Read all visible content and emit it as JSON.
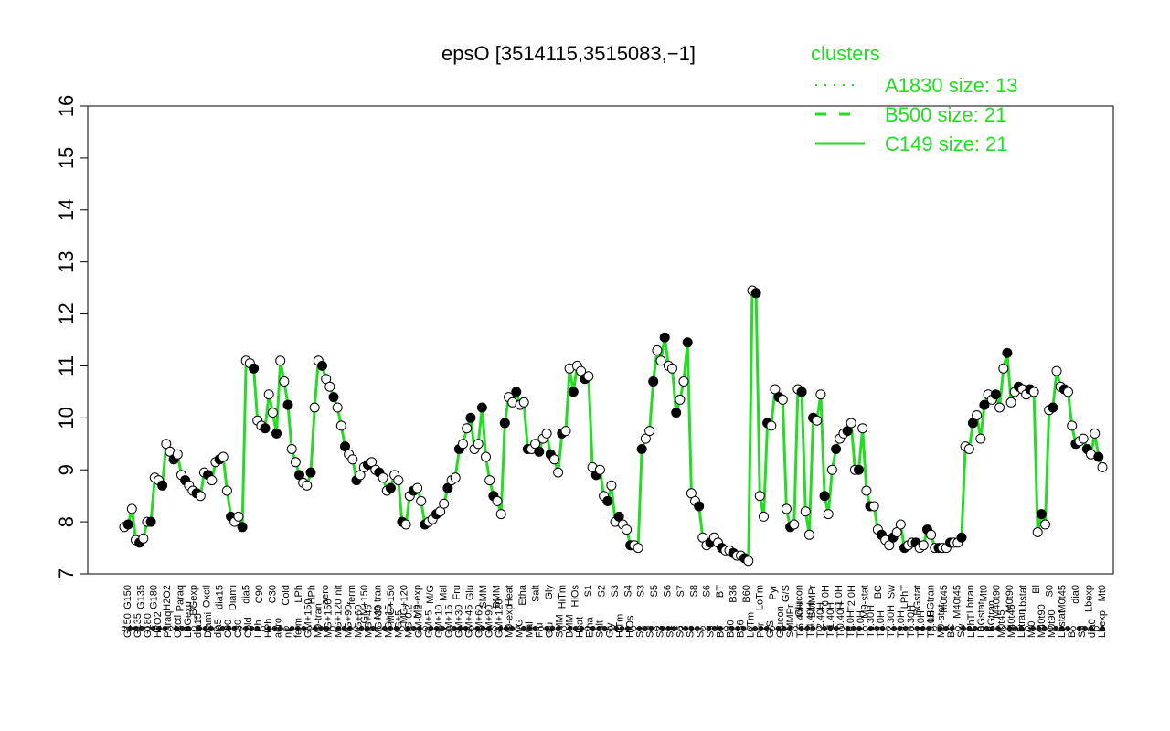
{
  "chart_data": {
    "type": "line",
    "title": "epsO [3514115,3515083,−1]",
    "ylim": [
      7,
      16
    ],
    "yticks": [
      7,
      8,
      9,
      10,
      11,
      12,
      13,
      14,
      15,
      16
    ],
    "line_color": "#22dd22",
    "legend": {
      "title": "clusters",
      "placement": "top-right",
      "entries": [
        {
          "label": "A1830 size: 13",
          "style": "dotted"
        },
        {
          "label": "B500 size: 21",
          "style": "dashed"
        },
        {
          "label": "C149 size: 21",
          "style": "solid"
        }
      ]
    },
    "x_labels": [
      "G150",
      "G135",
      "G180",
      "H2O2",
      "Paraq",
      "Oxctl",
      "LBGexp",
      "dia15",
      "Diami",
      "dia5",
      "C90",
      "C30",
      "Cold",
      "LPh",
      "HPh",
      "aero",
      "nit",
      "ferm",
      "GM+150",
      "M9-tran",
      "MG+150",
      "MG+120",
      "MG+90",
      "MG+60",
      "MG+45",
      "MG+30",
      "MG+15",
      "MG+5",
      "MG-0.2",
      "GM-0.2",
      "GM+5",
      "GM+10",
      "GM+15",
      "GM+30",
      "GM+45",
      "GM+60",
      "GM+90",
      "GM+120",
      "M9-exp",
      "M/G",
      "Mal",
      "Fru",
      "Glu",
      "SMM",
      "BMM",
      "Heat",
      "Etha",
      "Salt",
      "Gly",
      "HiTm",
      "HiOs",
      "S1",
      "S2",
      "S3",
      "S4",
      "S5",
      "S6",
      "S7",
      "S8",
      "BT",
      "B60",
      "B36",
      "LoTm",
      "Pyr",
      "G/S",
      "Glucon",
      "SMMPr",
      "T-5.40H",
      "T-4.40H",
      "T-2.40H",
      "T-1.40H",
      "T-0.40H",
      "T0.0H",
      "T1.0H",
      "T1.30H",
      "T2.0H",
      "T2.30H",
      "T3.0H",
      "T3.30H",
      "T4.0H",
      "T5.0H",
      "M9-stat",
      "BC",
      "Sw",
      "LPhT",
      "LBGstat",
      "LBGtran",
      "M0t45",
      "M40t45",
      "Lbtran",
      "Mt0",
      "M40t90",
      "M0t90",
      "Lbstat",
      "Bl",
      "S0",
      "dia0",
      "Lbexp"
    ],
    "x_label_shown": [
      "G150",
      "G135",
      "G180",
      "H2O2",
      "Paraq",
      "LBGexp",
      "Oxctl",
      "dia15",
      "Diami",
      "dia5",
      "C90",
      "C30",
      "Cold",
      "LPh",
      "HPh",
      "aero",
      "nit",
      "ferm",
      "GM+150",
      "M9-tran",
      "MG+150",
      "MG+120",
      "M9-exp",
      "M/G",
      "Mal",
      "Fru",
      "Glu",
      "SMM",
      "BMM",
      "Heat",
      "Etha",
      "Salt",
      "Gly",
      "HiTm",
      "HiOs",
      "S1",
      "S2",
      "S3",
      "S4",
      "S3",
      "S5",
      "S6",
      "S7",
      "S8",
      "S6",
      "BT",
      "B36",
      "B60",
      "LoTm",
      "Pyr",
      "G/S",
      "Glucon",
      "SMMPr",
      "T0.0H",
      "T1.0H",
      "T2.0H",
      "M9-stat",
      "BC",
      "Sw",
      "LPhT",
      "LBGstat",
      "LBGtran",
      "M0t45",
      "M40t45",
      "Lbtran",
      "Mt0",
      "M40t90",
      "M0t90",
      "Lbstat",
      "Bl",
      "S0",
      "M0t45",
      "dia0",
      "Lbexp",
      "Mt0"
    ],
    "series": [
      {
        "values": [
          7.9,
          7.95,
          8.25,
          7.65,
          7.6,
          7.68,
          8.0,
          8.0,
          8.85,
          8.8,
          8.7,
          9.5,
          9.35,
          9.2,
          9.3,
          8.9,
          8.8,
          8.7,
          8.6,
          8.55,
          8.5,
          8.95,
          8.9,
          8.8,
          9.15,
          9.2,
          9.25,
          8.6,
          8.1,
          8.0,
          8.1,
          7.9,
          11.1,
          11.05,
          10.95,
          9.95,
          9.85,
          9.8,
          10.45,
          10.1,
          9.7,
          11.1,
          10.7,
          10.25,
          9.4,
          9.15,
          8.9,
          8.75,
          8.7,
          8.95,
          10.2,
          11.1,
          11.0,
          10.75,
          10.6,
          10.4,
          10.2,
          9.85,
          9.45,
          9.3,
          9.2,
          8.8,
          8.9,
          9.05,
          9.1,
          9.15,
          9.0,
          8.95,
          8.85,
          8.6,
          8.65,
          8.9,
          8.8,
          8.0,
          7.95,
          8.5,
          8.6,
          8.65,
          8.4,
          7.95,
          8.0,
          8.05,
          8.15,
          8.2,
          8.35,
          8.65,
          8.8,
          8.85,
          9.4,
          9.5,
          9.8,
          10.0,
          9.4,
          9.5,
          10.2,
          9.25,
          8.8,
          8.5,
          8.4,
          8.15,
          9.9,
          10.4,
          10.3,
          10.5,
          10.25,
          10.3,
          9.4,
          9.4,
          9.5,
          9.35,
          9.6,
          9.7,
          9.3,
          9.2,
          8.95,
          9.7,
          9.75,
          10.95,
          10.5,
          11.0,
          10.9,
          10.75,
          10.8,
          9.05,
          8.9,
          9.0,
          8.5,
          8.4,
          8.7,
          8.0,
          8.1,
          7.95,
          7.85,
          7.55,
          7.55,
          7.5,
          9.4,
          9.6,
          9.75,
          10.7,
          11.3,
          11.1,
          11.55,
          11.0,
          10.95,
          10.1,
          10.35,
          10.7,
          11.45,
          8.55,
          8.4,
          8.3,
          7.7,
          7.55,
          7.6,
          7.7,
          7.6,
          7.5,
          7.45,
          7.45,
          7.4,
          7.35,
          7.35,
          7.3,
          7.25,
          12.45,
          12.4,
          8.5,
          8.1,
          9.9,
          9.85,
          10.55,
          10.4,
          10.35,
          8.25,
          7.9,
          7.95,
          10.55,
          10.5,
          8.2,
          7.75,
          10.0,
          9.95,
          10.45,
          8.5,
          8.15,
          9.0,
          9.4,
          9.6,
          9.7,
          9.75,
          9.9,
          9.0,
          9.0,
          9.8,
          8.6,
          8.3,
          8.3,
          7.85,
          7.75,
          7.65,
          7.55,
          7.7,
          7.8,
          7.95,
          7.5,
          7.55,
          7.6,
          7.6,
          7.5,
          7.55,
          7.85,
          7.75,
          7.5,
          7.5,
          7.5,
          7.5,
          7.6,
          7.6,
          7.6,
          7.7,
          9.45,
          9.4,
          9.9,
          10.05,
          9.6,
          10.25,
          10.45,
          10.35,
          10.45,
          10.2,
          10.95,
          11.25,
          10.3,
          10.5,
          10.6,
          10.55,
          10.45,
          10.55,
          10.5,
          7.8,
          8.15,
          7.95,
          10.15,
          10.2,
          10.9,
          10.6,
          10.55,
          10.5,
          9.85,
          9.5,
          9.55,
          9.6,
          9.4,
          9.3,
          9.7,
          9.25,
          9.05
        ]
      }
    ]
  }
}
